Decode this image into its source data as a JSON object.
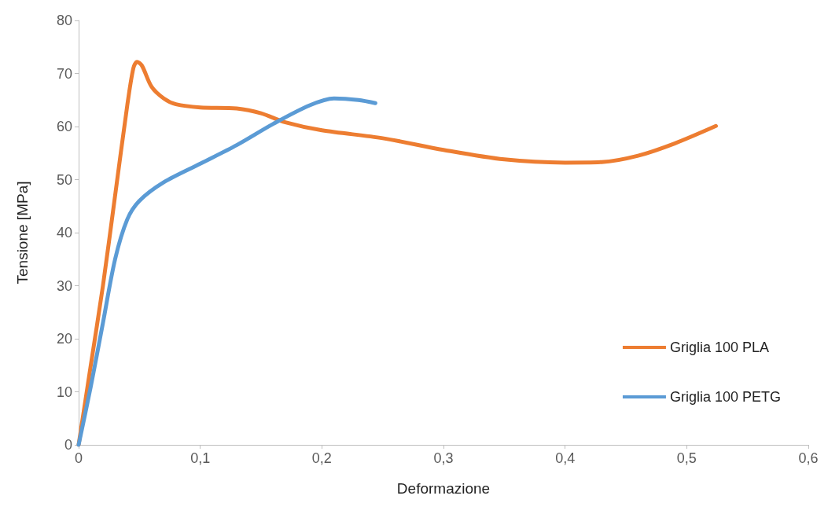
{
  "chart_data": {
    "type": "line",
    "xlabel": "Deformazione",
    "ylabel": "Tensione [MPa]",
    "xlim": [
      0,
      0.6
    ],
    "xticks": [
      {
        "value": 0,
        "label": "0"
      },
      {
        "value": 0.1,
        "label": "0,1"
      },
      {
        "value": 0.2,
        "label": "0,2"
      },
      {
        "value": 0.3,
        "label": "0,3"
      },
      {
        "value": 0.4,
        "label": "0,4"
      },
      {
        "value": 0.5,
        "label": "0,5"
      },
      {
        "value": 0.6,
        "label": "0,6"
      }
    ],
    "ylim": [
      0,
      80
    ],
    "yticks": [
      0,
      10,
      20,
      30,
      40,
      50,
      60,
      70,
      80
    ],
    "grid": false,
    "legend": "bottom right",
    "marker": "none",
    "line_style": "solid",
    "series": [
      {
        "name": "Griglia 100 PLA",
        "color": "#ed7d31",
        "x": [
          0,
          0.01,
          0.02,
          0.03,
          0.04,
          0.045,
          0.048,
          0.052,
          0.06,
          0.07,
          0.08,
          0.1,
          0.13,
          0.15,
          0.17,
          0.2,
          0.25,
          0.3,
          0.35,
          0.4,
          0.43,
          0.46,
          0.49,
          0.524
        ],
        "values": [
          0,
          15,
          30,
          47,
          64,
          71,
          72.2,
          71.5,
          67.5,
          65.3,
          64.2,
          63.6,
          63.4,
          62.5,
          60.8,
          59.3,
          57.8,
          55.6,
          53.8,
          53.2,
          53.3,
          54.5,
          56.8,
          60.1
        ]
      },
      {
        "name": "Griglia 100 PETG",
        "color": "#5b9bd5",
        "x": [
          0,
          0.01,
          0.02,
          0.03,
          0.04,
          0.05,
          0.07,
          0.1,
          0.13,
          0.16,
          0.19,
          0.21,
          0.23,
          0.244
        ],
        "values": [
          0,
          11,
          23,
          35,
          42.5,
          46,
          49.5,
          53,
          56.5,
          60.5,
          64,
          65.3,
          65,
          64.4
        ]
      }
    ]
  }
}
